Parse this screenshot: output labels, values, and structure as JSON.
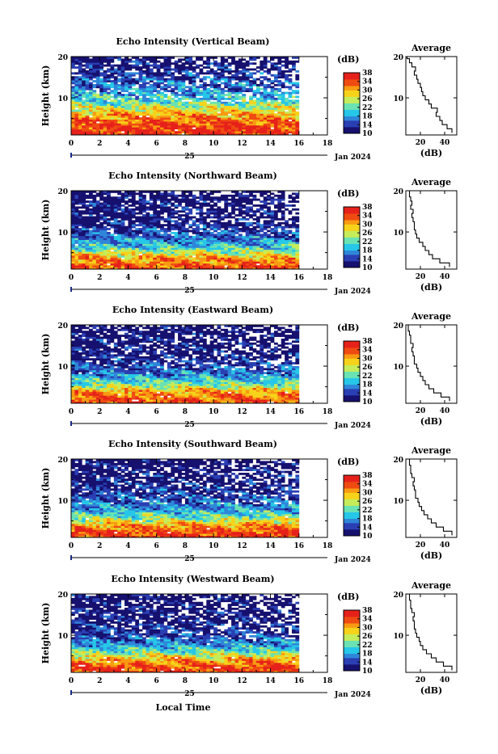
{
  "figure": {
    "xlabel": "Local Time",
    "date_label": "Jan 2024",
    "day_label": "25",
    "ylabel": "Height (km)",
    "avg_title": "Average",
    "avg_xlabel": "(dB)",
    "colorbar_unit": "(dB)",
    "colorbar_ticks": [
      "10",
      "14",
      "18",
      "22",
      "26",
      "30",
      "34",
      "38"
    ],
    "colorbar_range": [
      10,
      38
    ],
    "colors": {
      "colormap": [
        "#16106f",
        "#2a3fb3",
        "#2f86d9",
        "#26c7e8",
        "#6ae2b3",
        "#c6ec5a",
        "#f7d21a",
        "#f89a12",
        "#ef4b12",
        "#e6211a"
      ],
      "nodata": "#ffffff",
      "axis": "#000000"
    }
  },
  "chart_data": [
    {
      "type": "heatmap",
      "title": "Echo Intensity (Vertical Beam)",
      "x_ticks": [
        "0",
        "2",
        "4",
        "6",
        "8",
        "10",
        "12",
        "14",
        "16",
        "18"
      ],
      "xlim": [
        0,
        18
      ],
      "y_ticks": [
        "20",
        "10"
      ],
      "ylim": [
        1,
        20
      ],
      "data_extent_hours": [
        0,
        16
      ],
      "height_km": [
        2,
        4,
        6,
        8,
        10,
        12,
        14,
        16,
        18,
        20
      ],
      "mean_intensity_db": [
        36,
        34,
        30,
        25,
        20,
        17,
        15,
        13,
        11,
        10
      ]
    },
    {
      "type": "heatmap",
      "title": "Echo Intensity (Northward Beam)",
      "x_ticks": [
        "0",
        "2",
        "4",
        "6",
        "8",
        "10",
        "12",
        "14",
        "16",
        "18"
      ],
      "xlim": [
        0,
        18
      ],
      "y_ticks": [
        "20",
        "10"
      ],
      "ylim": [
        1,
        20
      ],
      "data_extent_hours": [
        0,
        16
      ],
      "height_km": [
        2,
        4,
        6,
        8,
        10,
        12,
        14,
        16,
        18,
        20
      ],
      "mean_intensity_db": [
        34,
        30,
        22,
        17,
        14,
        12,
        11,
        11,
        10,
        10
      ]
    },
    {
      "type": "heatmap",
      "title": "Echo Intensity (Eastward Beam)",
      "x_ticks": [
        "0",
        "2",
        "4",
        "6",
        "8",
        "10",
        "12",
        "14",
        "16",
        "18"
      ],
      "xlim": [
        0,
        18
      ],
      "y_ticks": [
        "20",
        "10"
      ],
      "ylim": [
        1,
        20
      ],
      "data_extent_hours": [
        0,
        16
      ],
      "height_km": [
        2,
        4,
        6,
        8,
        10,
        12,
        14,
        16,
        18,
        20
      ],
      "mean_intensity_db": [
        34,
        30,
        22,
        17,
        14,
        12,
        11,
        11,
        10,
        10
      ]
    },
    {
      "type": "heatmap",
      "title": "Echo Intensity (Southward Beam)",
      "x_ticks": [
        "0",
        "2",
        "4",
        "6",
        "8",
        "10",
        "12",
        "14",
        "16",
        "18"
      ],
      "xlim": [
        0,
        18
      ],
      "y_ticks": [
        "20",
        "10"
      ],
      "ylim": [
        1,
        20
      ],
      "data_extent_hours": [
        0,
        16
      ],
      "height_km": [
        2,
        4,
        6,
        8,
        10,
        12,
        14,
        16,
        18,
        20
      ],
      "mean_intensity_db": [
        35,
        31,
        23,
        18,
        15,
        13,
        12,
        11,
        10,
        10
      ]
    },
    {
      "type": "heatmap",
      "title": "Echo Intensity (Westward Beam)",
      "x_ticks": [
        "0",
        "2",
        "4",
        "6",
        "8",
        "10",
        "12",
        "14",
        "16",
        "18"
      ],
      "xlim": [
        0,
        18
      ],
      "y_ticks": [
        "20",
        "10"
      ],
      "ylim": [
        1,
        20
      ],
      "data_extent_hours": [
        0,
        16
      ],
      "height_km": [
        2,
        4,
        6,
        8,
        10,
        12,
        14,
        16,
        18,
        20
      ],
      "mean_intensity_db": [
        35,
        31,
        23,
        17,
        14,
        12,
        11,
        11,
        10,
        10
      ]
    },
    {
      "type": "line",
      "title": "Average",
      "xlabel": "(dB)",
      "x_ticks": [
        "20",
        "40"
      ],
      "xlim": [
        8,
        50
      ],
      "y_ticks": [
        "20",
        "10"
      ],
      "ylim": [
        1,
        20
      ],
      "height_km": [
        2,
        3,
        4,
        5,
        6,
        7,
        8,
        9,
        10,
        11,
        12,
        13,
        14,
        15,
        16,
        17,
        18,
        19,
        20
      ],
      "values_db": [
        46,
        42,
        38,
        36,
        33,
        34,
        29,
        27,
        24,
        22,
        21,
        20,
        18,
        17,
        15,
        16,
        13,
        11,
        9
      ]
    },
    {
      "type": "line",
      "title": "Average",
      "xlabel": "(dB)",
      "x_ticks": [
        "20",
        "40"
      ],
      "xlim": [
        8,
        50
      ],
      "y_ticks": [
        "20",
        "10"
      ],
      "ylim": [
        1,
        20
      ],
      "height_km": [
        2,
        3,
        4,
        5,
        6,
        7,
        8,
        9,
        10,
        11,
        12,
        13,
        14,
        15,
        16,
        17,
        18,
        19,
        20
      ],
      "values_db": [
        44,
        36,
        30,
        27,
        24,
        22,
        19,
        17,
        16,
        15,
        15,
        14,
        13,
        14,
        12,
        13,
        12,
        11,
        11
      ]
    },
    {
      "type": "line",
      "title": "Average",
      "xlabel": "(dB)",
      "x_ticks": [
        "20",
        "40"
      ],
      "xlim": [
        8,
        50
      ],
      "y_ticks": [
        "20",
        "10"
      ],
      "ylim": [
        1,
        20
      ],
      "height_km": [
        2,
        3,
        4,
        5,
        6,
        7,
        8,
        9,
        10,
        11,
        12,
        13,
        14,
        15,
        16,
        17,
        18,
        19,
        20
      ],
      "values_db": [
        44,
        37,
        31,
        27,
        24,
        22,
        20,
        18,
        17,
        15,
        15,
        14,
        13,
        14,
        12,
        12,
        11,
        10,
        10
      ]
    },
    {
      "type": "line",
      "title": "Average",
      "xlabel": "(dB)",
      "x_ticks": [
        "20",
        "40"
      ],
      "xlim": [
        8,
        50
      ],
      "y_ticks": [
        "20",
        "10"
      ],
      "ylim": [
        1,
        20
      ],
      "height_km": [
        2,
        3,
        4,
        5,
        6,
        7,
        8,
        9,
        10,
        11,
        12,
        13,
        14,
        15,
        16,
        17,
        18,
        19,
        20
      ],
      "values_db": [
        46,
        39,
        33,
        29,
        26,
        23,
        21,
        19,
        18,
        16,
        16,
        15,
        14,
        15,
        13,
        12,
        12,
        11,
        11
      ]
    },
    {
      "type": "line",
      "title": "Average",
      "xlabel": "(dB)",
      "x_ticks": [
        "20",
        "40"
      ],
      "xlim": [
        8,
        50
      ],
      "y_ticks": [
        "20",
        "10"
      ],
      "ylim": [
        1,
        20
      ],
      "height_km": [
        2,
        3,
        4,
        5,
        6,
        7,
        8,
        9,
        10,
        11,
        12,
        13,
        14,
        15,
        16,
        17,
        18,
        19,
        20
      ],
      "values_db": [
        46,
        39,
        33,
        29,
        25,
        22,
        20,
        19,
        17,
        16,
        15,
        15,
        14,
        15,
        13,
        12,
        12,
        11,
        11
      ]
    }
  ]
}
